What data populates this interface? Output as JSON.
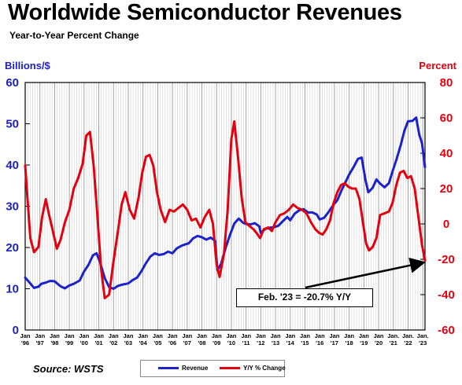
{
  "header": {
    "title": "Worldwide Semiconductor Revenues",
    "subtitle": "Year-to-Year Percent Change"
  },
  "footer": {
    "source": "Source: WSTS"
  },
  "colors": {
    "revenue": "#1c21c9",
    "yoy": "#e3000f",
    "grid": "#9a9a9a",
    "stripe": "#cfcfcf"
  },
  "chart_data": {
    "type": "line",
    "title": "Worldwide Semiconductor Revenues",
    "subtitle": "Year-to-Year Percent Change",
    "left_axis": {
      "label": "Billions/$",
      "min": 0,
      "max": 60,
      "ticks": [
        "0",
        "10",
        "20",
        "30",
        "40",
        "50",
        "60"
      ]
    },
    "right_axis": {
      "label": "Percent",
      "min": -60,
      "max": 80,
      "ticks": [
        "-60",
        "-40",
        "-20",
        "0",
        "20",
        "40",
        "60",
        "80"
      ]
    },
    "x_range": [
      1996.0,
      2023.15
    ],
    "x_labels": [
      {
        "top": "Jan",
        "bottom": "'96"
      },
      {
        "top": "Jan",
        "bottom": "'97"
      },
      {
        "top": "Jan",
        "bottom": "'98"
      },
      {
        "top": "Jan",
        "bottom": "'99"
      },
      {
        "top": "Jan",
        "bottom": "'00"
      },
      {
        "top": "Jan",
        "bottom": "'01"
      },
      {
        "top": "Jan",
        "bottom": "'02"
      },
      {
        "top": "Jan",
        "bottom": "'03"
      },
      {
        "top": "Jan",
        "bottom": "'04"
      },
      {
        "top": "Jan",
        "bottom": "'05"
      },
      {
        "top": "Jan",
        "bottom": "'06"
      },
      {
        "top": "Jan",
        "bottom": "'07"
      },
      {
        "top": "Jan",
        "bottom": "'08"
      },
      {
        "top": "Jan",
        "bottom": "'09"
      },
      {
        "top": "Jan",
        "bottom": "'10"
      },
      {
        "top": "Jan",
        "bottom": "'11"
      },
      {
        "top": "Jan",
        "bottom": "'12"
      },
      {
        "top": "Jan",
        "bottom": "'13"
      },
      {
        "top": "Jan",
        "bottom": "'14"
      },
      {
        "top": "Jan",
        "bottom": "'15"
      },
      {
        "top": "Jan",
        "bottom": "'16"
      },
      {
        "top": "Jan",
        "bottom": "'17"
      },
      {
        "top": "Jan",
        "bottom": "'18"
      },
      {
        "top": "Jan",
        "bottom": "'19"
      },
      {
        "top": "Jan",
        "bottom": "'20"
      },
      {
        "top": "Jan.",
        "bottom": "'21"
      },
      {
        "top": "Jan.",
        "bottom": "'22"
      },
      {
        "top": "Jan.",
        "bottom": "'23"
      }
    ],
    "series": [
      {
        "name": "Revenue",
        "axis": "left",
        "points": [
          [
            1996.0,
            12.7
          ],
          [
            1996.3,
            11.5
          ],
          [
            1996.6,
            10.2
          ],
          [
            1996.9,
            10.5
          ],
          [
            1997.1,
            11.2
          ],
          [
            1997.4,
            11.5
          ],
          [
            1997.7,
            11.9
          ],
          [
            1998.0,
            11.8
          ],
          [
            1998.4,
            10.6
          ],
          [
            1998.7,
            10.1
          ],
          [
            1999.0,
            10.8
          ],
          [
            1999.3,
            11.2
          ],
          [
            1999.7,
            12.0
          ],
          [
            2000.0,
            14.2
          ],
          [
            2000.3,
            15.8
          ],
          [
            2000.6,
            18.1
          ],
          [
            2000.85,
            18.6
          ],
          [
            2001.1,
            16.2
          ],
          [
            2001.4,
            12.6
          ],
          [
            2001.7,
            10.4
          ],
          [
            2002.0,
            10.0
          ],
          [
            2002.3,
            10.7
          ],
          [
            2002.6,
            11.0
          ],
          [
            2003.0,
            11.3
          ],
          [
            2003.3,
            12.1
          ],
          [
            2003.6,
            12.7
          ],
          [
            2003.9,
            14.3
          ],
          [
            2004.2,
            16.2
          ],
          [
            2004.5,
            17.8
          ],
          [
            2004.8,
            18.6
          ],
          [
            2005.1,
            18.2
          ],
          [
            2005.4,
            18.4
          ],
          [
            2005.7,
            19.0
          ],
          [
            2006.0,
            18.6
          ],
          [
            2006.3,
            19.8
          ],
          [
            2006.6,
            20.4
          ],
          [
            2006.9,
            20.8
          ],
          [
            2007.1,
            21.0
          ],
          [
            2007.4,
            22.2
          ],
          [
            2007.7,
            22.8
          ],
          [
            2008.0,
            22.5
          ],
          [
            2008.3,
            21.9
          ],
          [
            2008.6,
            22.4
          ],
          [
            2008.9,
            21.6
          ],
          [
            2009.05,
            14.5
          ],
          [
            2009.3,
            16.0
          ],
          [
            2009.6,
            19.8
          ],
          [
            2009.9,
            23.0
          ],
          [
            2010.2,
            25.8
          ],
          [
            2010.5,
            27.0
          ],
          [
            2010.8,
            26.0
          ],
          [
            2011.0,
            25.7
          ],
          [
            2011.3,
            25.6
          ],
          [
            2011.6,
            25.9
          ],
          [
            2011.9,
            25.1
          ],
          [
            2012.0,
            23.5
          ],
          [
            2012.3,
            24.5
          ],
          [
            2012.6,
            24.8
          ],
          [
            2012.9,
            24.9
          ],
          [
            2013.2,
            25.3
          ],
          [
            2013.5,
            26.4
          ],
          [
            2013.8,
            27.4
          ],
          [
            2014.0,
            26.6
          ],
          [
            2014.3,
            28.2
          ],
          [
            2014.6,
            29.0
          ],
          [
            2014.9,
            29.3
          ],
          [
            2015.2,
            28.5
          ],
          [
            2015.5,
            28.5
          ],
          [
            2015.8,
            28.0
          ],
          [
            2016.0,
            26.8
          ],
          [
            2016.3,
            27.2
          ],
          [
            2016.6,
            28.6
          ],
          [
            2016.9,
            30.2
          ],
          [
            2017.2,
            31.5
          ],
          [
            2017.5,
            34.0
          ],
          [
            2017.8,
            36.2
          ],
          [
            2018.0,
            37.7
          ],
          [
            2018.3,
            39.5
          ],
          [
            2018.6,
            41.5
          ],
          [
            2018.85,
            41.8
          ],
          [
            2019.1,
            36.5
          ],
          [
            2019.3,
            33.4
          ],
          [
            2019.6,
            34.5
          ],
          [
            2019.85,
            36.5
          ],
          [
            2020.1,
            35.5
          ],
          [
            2020.4,
            34.6
          ],
          [
            2020.7,
            35.6
          ],
          [
            2020.95,
            38.5
          ],
          [
            2021.2,
            41.2
          ],
          [
            2021.5,
            44.8
          ],
          [
            2021.75,
            48.3
          ],
          [
            2022.0,
            50.6
          ],
          [
            2022.3,
            50.7
          ],
          [
            2022.55,
            51.5
          ],
          [
            2022.75,
            47.5
          ],
          [
            2022.95,
            45.2
          ],
          [
            2023.15,
            39.5
          ]
        ]
      },
      {
        "name": "Y/Y % Change",
        "axis": "right",
        "points": [
          [
            1996.0,
            33.0
          ],
          [
            1996.15,
            15.0
          ],
          [
            1996.35,
            -8.0
          ],
          [
            1996.6,
            -16.0
          ],
          [
            1996.9,
            -13.0
          ],
          [
            1997.15,
            4.0
          ],
          [
            1997.4,
            14.0
          ],
          [
            1997.6,
            6.0
          ],
          [
            1997.85,
            -3.0
          ],
          [
            1998.15,
            -14.0
          ],
          [
            1998.4,
            -9.0
          ],
          [
            1998.7,
            1.0
          ],
          [
            1999.0,
            8.0
          ],
          [
            1999.3,
            20.0
          ],
          [
            1999.6,
            26.0
          ],
          [
            1999.9,
            34.0
          ],
          [
            2000.15,
            50.0
          ],
          [
            2000.4,
            52.0
          ],
          [
            2000.65,
            33.0
          ],
          [
            2000.9,
            5.0
          ],
          [
            2001.15,
            -25.0
          ],
          [
            2001.4,
            -42.0
          ],
          [
            2001.7,
            -40.0
          ],
          [
            2002.0,
            -21.0
          ],
          [
            2002.3,
            -4.0
          ],
          [
            2002.55,
            11.0
          ],
          [
            2002.8,
            18.0
          ],
          [
            2003.1,
            8.0
          ],
          [
            2003.4,
            3.0
          ],
          [
            2003.7,
            15.0
          ],
          [
            2003.95,
            29.0
          ],
          [
            2004.2,
            38.0
          ],
          [
            2004.45,
            39.0
          ],
          [
            2004.7,
            33.0
          ],
          [
            2004.95,
            18.0
          ],
          [
            2005.2,
            8.0
          ],
          [
            2005.5,
            1.0
          ],
          [
            2005.8,
            8.0
          ],
          [
            2006.1,
            7.0
          ],
          [
            2006.4,
            9.0
          ],
          [
            2006.7,
            11.0
          ],
          [
            2007.0,
            8.0
          ],
          [
            2007.3,
            2.0
          ],
          [
            2007.6,
            3.0
          ],
          [
            2007.9,
            -2.0
          ],
          [
            2008.2,
            4.0
          ],
          [
            2008.5,
            8.0
          ],
          [
            2008.75,
            0.0
          ],
          [
            2009.0,
            -23.0
          ],
          [
            2009.2,
            -30.0
          ],
          [
            2009.5,
            -17.0
          ],
          [
            2009.75,
            8.0
          ],
          [
            2010.0,
            48.0
          ],
          [
            2010.2,
            58.0
          ],
          [
            2010.45,
            38.0
          ],
          [
            2010.7,
            15.0
          ],
          [
            2010.95,
            1.0
          ],
          [
            2011.2,
            -1.0
          ],
          [
            2011.5,
            -3.0
          ],
          [
            2011.7,
            -5.0
          ],
          [
            2011.95,
            -8.0
          ],
          [
            2012.2,
            -3.0
          ],
          [
            2012.5,
            -2.0
          ],
          [
            2012.75,
            -4.0
          ],
          [
            2013.0,
            1.0
          ],
          [
            2013.3,
            5.0
          ],
          [
            2013.6,
            6.0
          ],
          [
            2013.9,
            8.0
          ],
          [
            2014.2,
            11.0
          ],
          [
            2014.5,
            9.0
          ],
          [
            2014.8,
            8.0
          ],
          [
            2015.1,
            6.0
          ],
          [
            2015.4,
            1.0
          ],
          [
            2015.7,
            -3.0
          ],
          [
            2015.95,
            -5.0
          ],
          [
            2016.2,
            -6.0
          ],
          [
            2016.45,
            -3.0
          ],
          [
            2016.7,
            2.0
          ],
          [
            2016.95,
            12.0
          ],
          [
            2017.2,
            18.0
          ],
          [
            2017.45,
            22.0
          ],
          [
            2017.7,
            23.0
          ],
          [
            2017.95,
            21.0
          ],
          [
            2018.2,
            20.0
          ],
          [
            2018.45,
            20.0
          ],
          [
            2018.7,
            14.0
          ],
          [
            2018.95,
            0.0
          ],
          [
            2019.15,
            -11.0
          ],
          [
            2019.35,
            -15.0
          ],
          [
            2019.6,
            -13.0
          ],
          [
            2019.85,
            -8.0
          ],
          [
            2020.1,
            5.0
          ],
          [
            2020.4,
            6.0
          ],
          [
            2020.7,
            7.0
          ],
          [
            2020.95,
            12.0
          ],
          [
            2021.2,
            22.0
          ],
          [
            2021.45,
            29.0
          ],
          [
            2021.7,
            30.0
          ],
          [
            2021.95,
            26.0
          ],
          [
            2022.2,
            27.0
          ],
          [
            2022.45,
            20.0
          ],
          [
            2022.7,
            4.0
          ],
          [
            2022.95,
            -12.0
          ],
          [
            2023.15,
            -20.7
          ]
        ]
      }
    ],
    "legend": {
      "placement": "bottom-center",
      "entries": [
        "Revenue",
        "Y/Y % Change"
      ]
    },
    "annotation": {
      "text": "Feb. '23 = -20.7% Y/Y",
      "target": [
        2023.15,
        -20.7
      ]
    },
    "grid": "vertical"
  }
}
